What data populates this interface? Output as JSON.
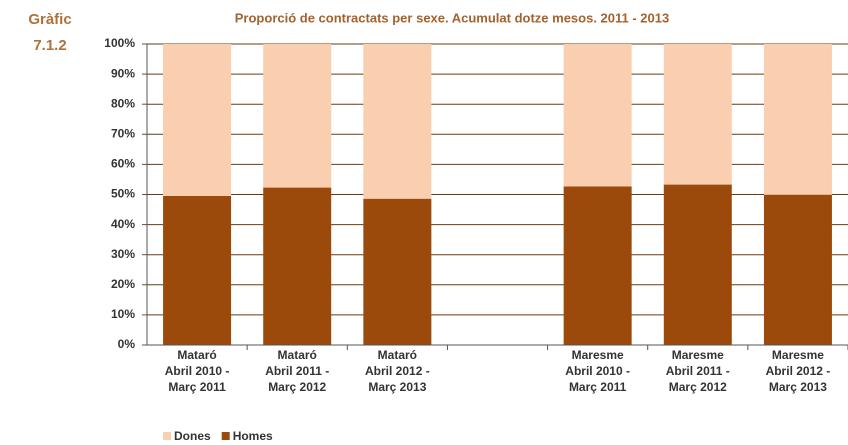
{
  "chart_data": {
    "type": "stacked_bar",
    "figure_label": "Gràfic\n7.1.2",
    "title": "Proporció de contractats  per sexe. Acumulat dotze mesos. 2011 - 2013",
    "categories": [
      "Mataró\nAbril 2010 -\nMarç 2011",
      "Mataró\nAbril 2011 -\nMarç 2012",
      "Mataró\nAbril 2012 -\nMarç 2013",
      null,
      "Maresme\nAbril 2010 -\nMarç 2011",
      "Maresme\nAbril 2011 -\nMarç 2012",
      "Maresme\nAbril 2012 -\nMarç 2013"
    ],
    "series": [
      {
        "name": "Dones",
        "color": "#f9cfb0",
        "values": [
          50.5,
          47.7,
          51.4,
          null,
          47.3,
          46.7,
          50.1
        ]
      },
      {
        "name": "Homes",
        "color": "#9b4a0b",
        "values": [
          49.5,
          52.3,
          48.6,
          null,
          52.7,
          53.3,
          49.9
        ]
      }
    ],
    "ylim": [
      0,
      100
    ],
    "yticks": [
      {
        "value": 0,
        "label": "0%"
      },
      {
        "value": 10,
        "label": "10%"
      },
      {
        "value": 20,
        "label": "20%"
      },
      {
        "value": 30,
        "label": "30%"
      },
      {
        "value": 40,
        "label": "40%"
      },
      {
        "value": 50,
        "label": "50%"
      },
      {
        "value": 60,
        "label": "60%"
      },
      {
        "value": 70,
        "label": "70%"
      },
      {
        "value": 80,
        "label": "80%"
      },
      {
        "value": 90,
        "label": "90%"
      },
      {
        "value": 100,
        "label": "100%"
      }
    ],
    "grid": true,
    "legend": "bottom-left"
  }
}
